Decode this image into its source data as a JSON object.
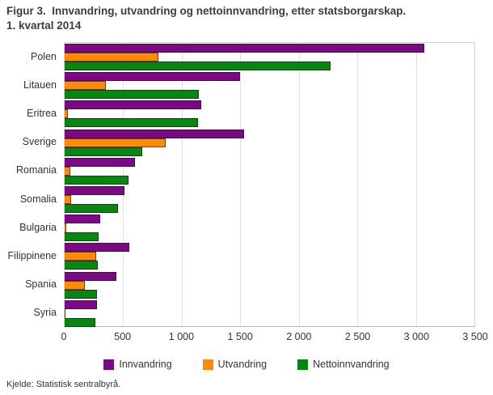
{
  "title_line1": "Figur 3.  Innvandring, utvandring og nettoinnvandring, etter statsborgarskap.",
  "title_line2": "1. kvartal 2014",
  "source": "Kjelde: Statistisk sentralbyrå.",
  "colors": {
    "innvandring": "#7d0886",
    "utvandring": "#ff8a0a",
    "nettoinnvandring": "#078611",
    "grid": "#e0e0e0",
    "axis": "#b9b9b9",
    "text": "#333333"
  },
  "chart_data": {
    "type": "bar",
    "orientation": "horizontal",
    "title": "Figur 3. Innvandring, utvandring og nettoinnvandring, etter statsborgarskap. 1. kvartal 2014",
    "categories": [
      "Polen",
      "Litauen",
      "Eritrea",
      "Sverige",
      "Romania",
      "Somalia",
      "Bulgaria",
      "Filippinene",
      "Spania",
      "Syria"
    ],
    "series": [
      {
        "name": "Innvandring",
        "color": "#7d0886",
        "values": [
          3070,
          1500,
          1170,
          1530,
          600,
          510,
          305,
          555,
          445,
          275
        ]
      },
      {
        "name": "Utvandring",
        "color": "#ff8a0a",
        "values": [
          800,
          355,
          30,
          865,
          45,
          55,
          15,
          270,
          170,
          10
        ]
      },
      {
        "name": "Nettoinnvandring",
        "color": "#078611",
        "values": [
          2270,
          1145,
          1140,
          660,
          545,
          455,
          290,
          285,
          275,
          265
        ]
      }
    ],
    "xlim": [
      0,
      3500
    ],
    "x_ticks": [
      0,
      500,
      1000,
      1500,
      2000,
      2500,
      3000,
      3500
    ],
    "x_tick_labels": [
      "0",
      "500",
      "1 000",
      "1 500",
      "2 000",
      "2 500",
      "3 000",
      "3 500"
    ],
    "grid": true,
    "legend_position": "bottom"
  },
  "legend": [
    {
      "label": "Innvandring",
      "color": "#7d0886"
    },
    {
      "label": "Utvandring",
      "color": "#ff8a0a"
    },
    {
      "label": "Nettoinnvandring",
      "color": "#078611"
    }
  ]
}
